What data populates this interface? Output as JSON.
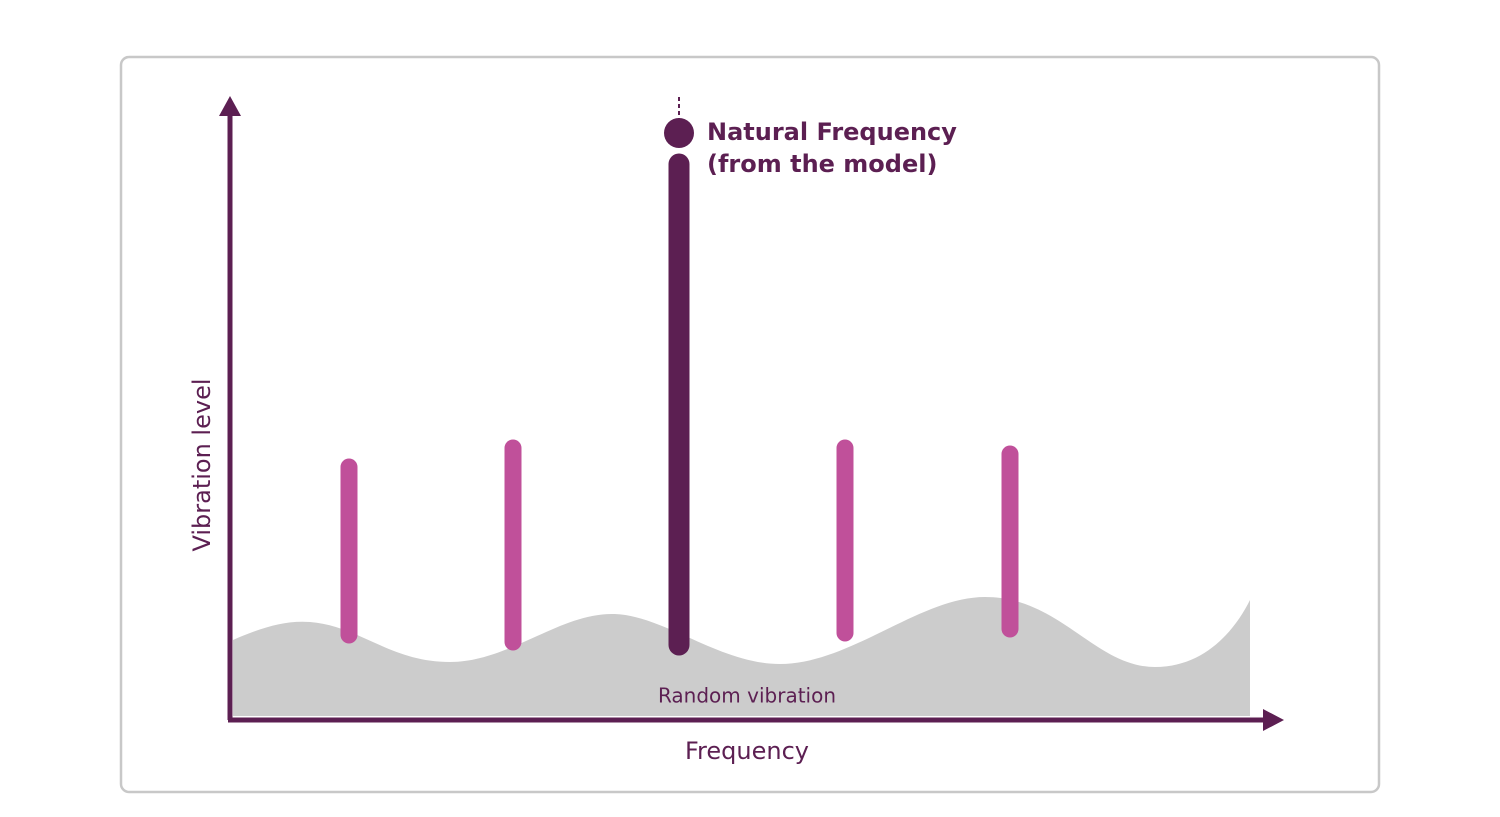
{
  "axes": {
    "y_label": "Vibration level",
    "x_label": "Frequency"
  },
  "annotations": {
    "natural_frequency": [
      "Natural Frequency",
      "(from the model)"
    ],
    "random_vibration": "Random vibration"
  }
}
